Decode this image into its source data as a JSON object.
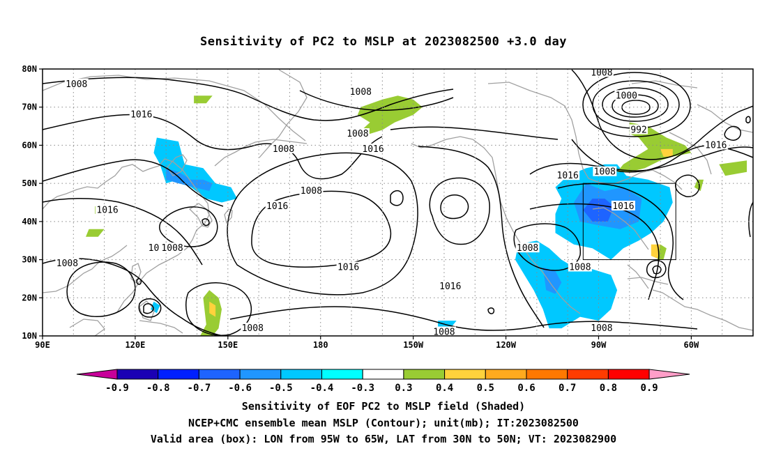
{
  "title": "Sensitivity of PC2 to MSLP at 2023082500 +3.0 day",
  "map": {
    "lon_range": [
      "90E",
      "40W"
    ],
    "lat_range": [
      10,
      80
    ],
    "grid": "dotted",
    "lat_ticks": [
      "80N",
      "70N",
      "60N",
      "50N",
      "40N",
      "30N",
      "20N",
      "10N"
    ],
    "lon_ticks": [
      "90E",
      "120E",
      "150E",
      "180",
      "150W",
      "120W",
      "90W",
      "60W"
    ],
    "contour_labels": [
      {
        "text": "1008",
        "lon": 101,
        "lat": 76
      },
      {
        "text": "1016",
        "lon": 122,
        "lat": 68
      },
      {
        "text": "1008",
        "lon": 168,
        "lat": 59
      },
      {
        "text": "1008",
        "lon": 193,
        "lat": 74
      },
      {
        "text": "1008",
        "lon": 192,
        "lat": 63
      },
      {
        "text": "1016",
        "lon": 197,
        "lat": 59
      },
      {
        "text": "1008",
        "lon": 177,
        "lat": 48
      },
      {
        "text": "1016",
        "lon": 111,
        "lat": 43
      },
      {
        "text": "1016",
        "lon": 166,
        "lat": 44
      },
      {
        "text": "1008",
        "lon": 132,
        "lat": 33
      },
      {
        "text": "10",
        "lon": 126,
        "lat": 33
      },
      {
        "text": "1008",
        "lon": 98,
        "lat": 29
      },
      {
        "text": "1016",
        "lon": 189,
        "lat": 28
      },
      {
        "text": "1016",
        "lon": 222,
        "lat": 23
      },
      {
        "text": "1008",
        "lon": 158,
        "lat": 12
      },
      {
        "text": "1008",
        "lon": 220,
        "lat": 11
      },
      {
        "text": "1008",
        "lon": 271,
        "lat": 79
      },
      {
        "text": "1000",
        "lon": 279,
        "lat": 73
      },
      {
        "text": "992",
        "lon": 283,
        "lat": 64
      },
      {
        "text": "1016",
        "lon": 260,
        "lat": 52
      },
      {
        "text": "1008",
        "lon": 272,
        "lat": 53
      },
      {
        "text": "1016",
        "lon": 308,
        "lat": 60
      },
      {
        "text": "1016",
        "lon": 278,
        "lat": 44
      },
      {
        "text": "1008",
        "lon": 247,
        "lat": 33
      },
      {
        "text": "1008",
        "lon": 264,
        "lat": 28
      },
      {
        "text": "1008",
        "lon": 271,
        "lat": 12
      }
    ],
    "valid_box": {
      "lon_min": 265,
      "lon_max": 295,
      "lat_min": 30,
      "lat_max": 50
    },
    "shaded_regions": [
      {
        "level": -0.4,
        "polygon": [
          [
            127,
            62
          ],
          [
            134,
            61
          ],
          [
            136,
            55
          ],
          [
            142,
            54
          ],
          [
            146,
            50
          ],
          [
            151,
            49
          ],
          [
            153,
            46
          ],
          [
            148,
            45
          ],
          [
            143,
            46
          ],
          [
            138,
            49
          ],
          [
            134,
            51
          ],
          [
            130,
            50
          ],
          [
            128,
            55
          ],
          [
            126,
            58
          ]
        ]
      },
      {
        "level": -0.5,
        "polygon": [
          [
            130,
            54
          ],
          [
            134,
            53
          ],
          [
            138,
            51
          ],
          [
            142,
            51
          ],
          [
            145,
            50
          ],
          [
            144,
            48
          ],
          [
            139,
            49
          ],
          [
            134,
            50
          ],
          [
            130,
            51
          ]
        ]
      },
      {
        "level": -0.4,
        "polygon": [
          [
            256,
            49
          ],
          [
            260,
            52
          ],
          [
            266,
            54
          ],
          [
            272,
            55
          ],
          [
            276,
            55
          ],
          [
            279,
            52
          ],
          [
            286,
            51
          ],
          [
            293,
            49
          ],
          [
            294,
            45
          ],
          [
            291,
            40
          ],
          [
            287,
            37
          ],
          [
            283,
            35
          ],
          [
            278,
            33
          ],
          [
            274,
            30
          ],
          [
            272,
            31
          ],
          [
            268,
            33
          ],
          [
            262,
            34
          ],
          [
            256,
            37
          ],
          [
            256,
            42
          ],
          [
            258,
            46
          ]
        ]
      },
      {
        "level": -0.5,
        "polygon": [
          [
            262,
            45
          ],
          [
            266,
            50
          ],
          [
            272,
            48
          ],
          [
            278,
            49
          ],
          [
            284,
            46
          ],
          [
            283,
            40
          ],
          [
            277,
            38
          ],
          [
            270,
            39
          ],
          [
            264,
            40
          ]
        ]
      },
      {
        "level": -0.6,
        "polygon": [
          [
            265,
            43
          ],
          [
            268,
            46
          ],
          [
            272,
            46
          ],
          [
            275,
            44
          ],
          [
            273,
            40
          ],
          [
            268,
            40
          ]
        ]
      },
      {
        "level": -0.4,
        "polygon": [
          [
            244,
            34
          ],
          [
            250,
            35
          ],
          [
            254,
            33
          ],
          [
            258,
            30
          ],
          [
            262,
            28
          ],
          [
            266,
            28
          ],
          [
            270,
            27
          ],
          [
            274,
            26
          ],
          [
            276,
            22
          ],
          [
            274,
            17
          ],
          [
            270,
            14
          ],
          [
            264,
            15
          ],
          [
            258,
            12
          ],
          [
            254,
            12
          ],
          [
            252,
            17
          ],
          [
            249,
            22
          ],
          [
            246,
            26
          ],
          [
            243,
            30
          ]
        ]
      },
      {
        "level": -0.5,
        "polygon": [
          [
            252,
            28
          ],
          [
            256,
            27
          ],
          [
            258,
            24
          ],
          [
            256,
            21
          ],
          [
            253,
            22
          ]
        ]
      },
      {
        "level": -0.4,
        "polygon": [
          [
            218,
            14
          ],
          [
            224,
            14
          ],
          [
            222,
            12
          ],
          [
            218,
            12
          ]
        ]
      },
      {
        "level": -0.4,
        "polygon": [
          [
            126,
            19
          ],
          [
            128,
            18
          ],
          [
            127,
            16
          ],
          [
            125,
            17
          ]
        ]
      },
      {
        "level": 0.3,
        "polygon": [
          [
            193,
            70
          ],
          [
            200,
            72
          ],
          [
            205,
            73
          ],
          [
            210,
            72
          ],
          [
            213,
            70
          ],
          [
            210,
            68
          ],
          [
            204,
            66
          ],
          [
            200,
            64
          ],
          [
            196,
            63
          ],
          [
            192,
            63
          ],
          [
            196,
            66
          ],
          [
            192,
            68
          ]
        ]
      },
      {
        "level": 0.3,
        "polygon": [
          [
            280,
            66
          ],
          [
            286,
            65
          ],
          [
            292,
            62
          ],
          [
            298,
            60
          ],
          [
            300,
            58
          ],
          [
            294,
            57
          ],
          [
            290,
            56
          ],
          [
            285,
            54
          ],
          [
            280,
            53
          ],
          [
            276,
            53
          ],
          [
            278,
            55
          ],
          [
            282,
            57
          ],
          [
            286,
            59
          ],
          [
            283,
            62
          ],
          [
            280,
            63
          ]
        ]
      },
      {
        "level": 0.4,
        "polygon": [
          [
            290,
            59
          ],
          [
            294,
            59
          ],
          [
            294,
            57
          ],
          [
            291,
            57
          ]
        ]
      },
      {
        "level": 0.3,
        "polygon": [
          [
            309,
            55
          ],
          [
            318,
            56
          ],
          [
            318,
            53
          ],
          [
            311,
            52
          ]
        ]
      },
      {
        "level": 0.3,
        "polygon": [
          [
            302,
            51
          ],
          [
            304,
            51
          ],
          [
            303,
            48
          ],
          [
            301,
            49
          ]
        ]
      },
      {
        "level": 0.3,
        "polygon": [
          [
            142,
            20
          ],
          [
            144,
            22
          ],
          [
            147,
            20
          ],
          [
            148,
            17
          ],
          [
            147,
            12
          ],
          [
            145,
            10
          ],
          [
            141,
            10
          ],
          [
            143,
            13
          ]
        ]
      },
      {
        "level": 0.4,
        "polygon": [
          [
            144,
            19
          ],
          [
            146,
            18
          ],
          [
            146,
            15
          ],
          [
            144,
            16
          ]
        ]
      },
      {
        "level": 0.4,
        "polygon": [
          [
            287,
            34
          ],
          [
            290,
            34
          ],
          [
            290,
            30
          ],
          [
            287,
            31
          ]
        ]
      },
      {
        "level": 0.3,
        "polygon": [
          [
            290,
            34
          ],
          [
            292,
            33
          ],
          [
            291,
            30
          ],
          [
            289,
            30
          ]
        ]
      },
      {
        "level": 0.3,
        "polygon": [
          [
            105,
            38
          ],
          [
            110,
            38
          ],
          [
            108,
            36
          ],
          [
            104,
            36
          ]
        ]
      },
      {
        "level": 0.3,
        "polygon": [
          [
            107,
            44
          ],
          [
            112,
            44
          ],
          [
            110,
            42
          ],
          [
            107,
            42
          ]
        ]
      },
      {
        "level": 0.3,
        "polygon": [
          [
            139,
            73
          ],
          [
            145,
            73
          ],
          [
            143,
            71
          ],
          [
            139,
            71
          ]
        ]
      }
    ]
  },
  "colorbar": {
    "labels": [
      "-0.9",
      "-0.8",
      "-0.7",
      "-0.6",
      "-0.5",
      "-0.4",
      "-0.3",
      "0.3",
      "0.4",
      "0.5",
      "0.6",
      "0.7",
      "0.8",
      "0.9"
    ],
    "colors": [
      "#c8009a",
      "#1b00b4",
      "#0020ff",
      "#1e64ff",
      "#2096ff",
      "#00c8ff",
      "#00ffff",
      "#ffffff",
      "#99cc33",
      "#ffd23c",
      "#ffaa1e",
      "#ff7800",
      "#ff3c00",
      "#ff0000",
      "#ff9ec8"
    ]
  },
  "captions": {
    "line1": "Sensitivity of EOF PC2 to MSLP field (Shaded)",
    "line2": "NCEP+CMC ensemble mean MSLP (Contour); unit(mb); IT:2023082500",
    "line3": "Valid area (box): LON from 95W to 65W, LAT from 30N to 50N; VT: 2023082900"
  }
}
